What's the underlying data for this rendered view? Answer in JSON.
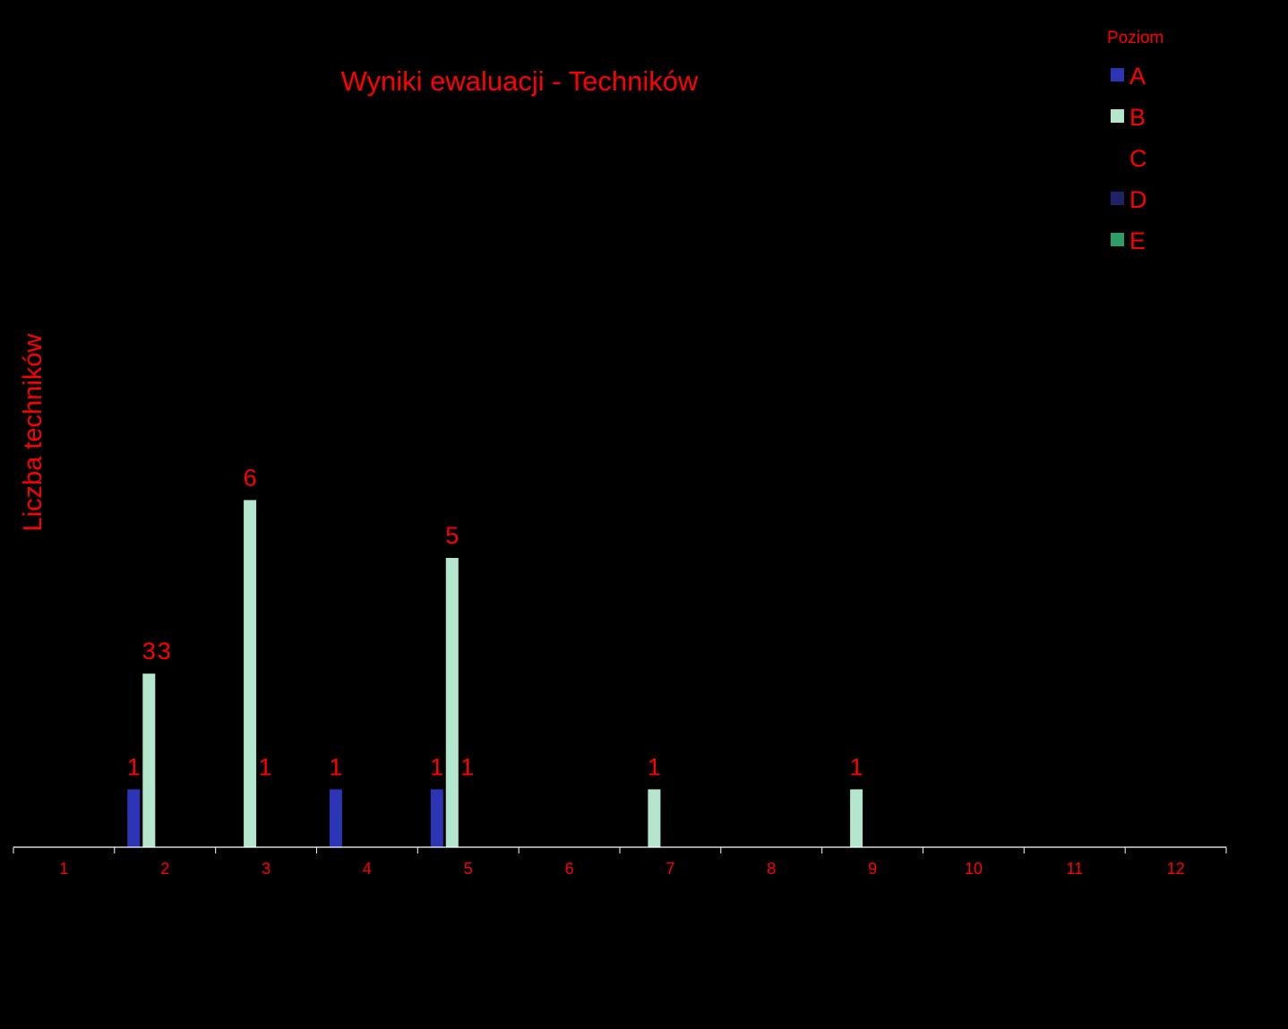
{
  "chart_data": {
    "type": "bar",
    "title": "Wyniki ewaluacji  - Techników",
    "xlabel": "",
    "ylabel": "Liczba techników",
    "categories": [
      "1",
      "2",
      "3",
      "4",
      "5",
      "6",
      "7",
      "8",
      "9",
      "10",
      "11",
      "12"
    ],
    "ylim": [
      0,
      12
    ],
    "grid": false,
    "legend": {
      "title": "Poziom",
      "placement": "top-right"
    },
    "series": [
      {
        "name": "A",
        "color": "#2b35b5",
        "values": [
          0,
          1,
          0,
          1,
          1,
          0,
          0,
          0,
          0,
          0,
          0,
          0
        ]
      },
      {
        "name": "B",
        "color": "#b3e6cc",
        "values": [
          0,
          3,
          6,
          0,
          5,
          0,
          1,
          0,
          1,
          0,
          0,
          0
        ]
      },
      {
        "name": "C",
        "color": "#000000",
        "values": [
          0,
          3,
          1,
          0,
          1,
          0,
          0,
          0,
          0,
          0,
          0,
          0
        ]
      },
      {
        "name": "D",
        "color": "#1f2266",
        "values": [
          0,
          0,
          0,
          0,
          0,
          0,
          0,
          0,
          0,
          0,
          0,
          0
        ]
      },
      {
        "name": "E",
        "color": "#2e9e68",
        "values": [
          0,
          0,
          0,
          0,
          0,
          0,
          0,
          0,
          0,
          0,
          0,
          0
        ]
      }
    ],
    "data_labels": [
      {
        "category": "2",
        "series": "A",
        "text": "1"
      },
      {
        "category": "2",
        "series": "B",
        "text": "3"
      },
      {
        "category": "2",
        "series": "C",
        "text": "3"
      },
      {
        "category": "3",
        "series": "B",
        "text": "6"
      },
      {
        "category": "3",
        "series": "C",
        "text": "1"
      },
      {
        "category": "4",
        "series": "A",
        "text": "1"
      },
      {
        "category": "5",
        "series": "A",
        "text": "1"
      },
      {
        "category": "5",
        "series": "B",
        "text": "5"
      },
      {
        "category": "5",
        "series": "C",
        "text": "1"
      },
      {
        "category": "7",
        "series": "B",
        "text": "1"
      },
      {
        "category": "9",
        "series": "B",
        "text": "1"
      }
    ],
    "colors": {
      "background": "#000000",
      "text": "#ff0000",
      "axis": "#ffffff"
    }
  }
}
